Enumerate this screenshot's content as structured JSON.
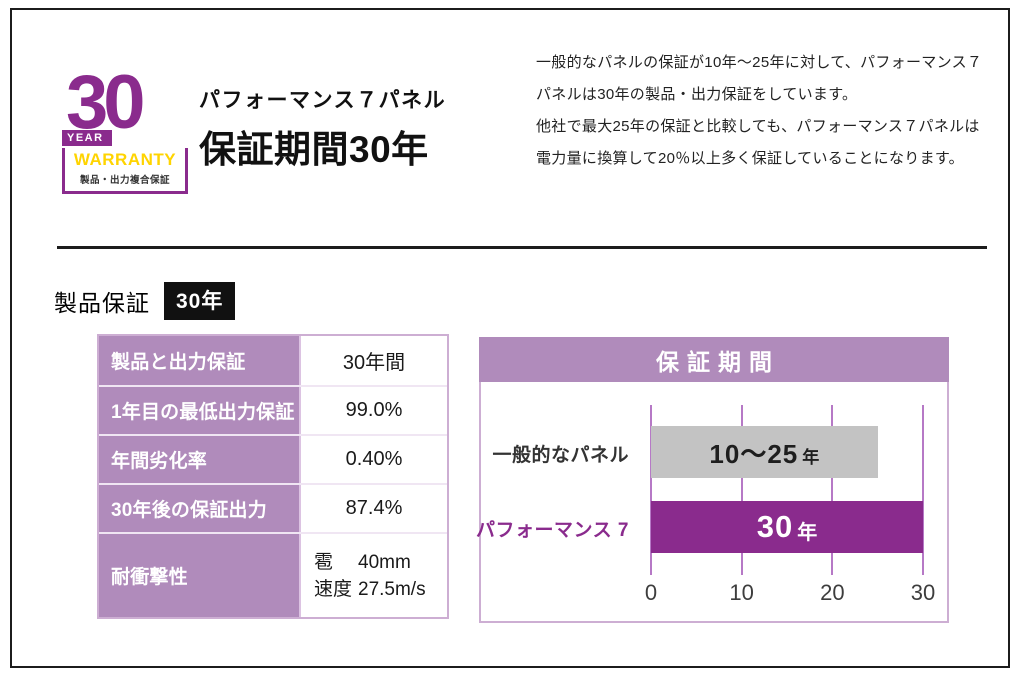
{
  "colors": {
    "deep_purple": "#8a2b8d",
    "mauve": "#b08bbb",
    "light_purple_border": "#cdaed3",
    "gridline_purple": "#b679c6",
    "gray_bar": "#c3c3c3",
    "warranty_yellow": "#ffd400",
    "badge_black": "#111111"
  },
  "logo": {
    "number": "30",
    "year_label": "YEAR",
    "warranty_label": "WARRANTY",
    "sub_label": "製品・出力複合保証"
  },
  "header": {
    "panel_name": "パフォーマンス７パネル",
    "title": "保証期間30年",
    "description_line1": "一般的なパネルの保証が10年〜25年に対して、パフォーマンス７パネルは30年の製品・出力保証をしています。",
    "description_line2": "他社で最大25年の保証と比較しても、パフォーマンス７パネルは電力量に換算して20％以上多く保証していることになります。"
  },
  "section": {
    "label": "製品保証",
    "badge": "30年"
  },
  "spec_table": {
    "rows": [
      {
        "label": "製品と出力保証",
        "value": "30年間"
      },
      {
        "label": "1年目の最低出力保証",
        "value": "99.0%"
      },
      {
        "label": "年間劣化率",
        "value": "0.40%"
      },
      {
        "label": "30年後の保証出力",
        "value": "87.4%"
      }
    ],
    "impact_row": {
      "label": "耐衝撃性",
      "line1_label": "雹",
      "line1_value": "40mm",
      "line2_label": "速度",
      "line2_value": "27.5m/s"
    }
  },
  "chart_data": {
    "type": "bar",
    "orientation": "horizontal",
    "title": "保証期間",
    "categories": [
      "一般的なパネル",
      "パフォーマンス 7"
    ],
    "values": [
      25,
      30
    ],
    "bar_labels": [
      {
        "main": "10〜25",
        "suffix": "年"
      },
      {
        "main": "30",
        "suffix": "年"
      }
    ],
    "bar_colors": [
      "#c3c3c3",
      "#8a2b8d"
    ],
    "category_colors": [
      "#333333",
      "#8a2b8d"
    ],
    "x_ticks": [
      0,
      10,
      20,
      30
    ],
    "xlim": [
      0,
      30
    ],
    "grid": true,
    "legend": false
  }
}
